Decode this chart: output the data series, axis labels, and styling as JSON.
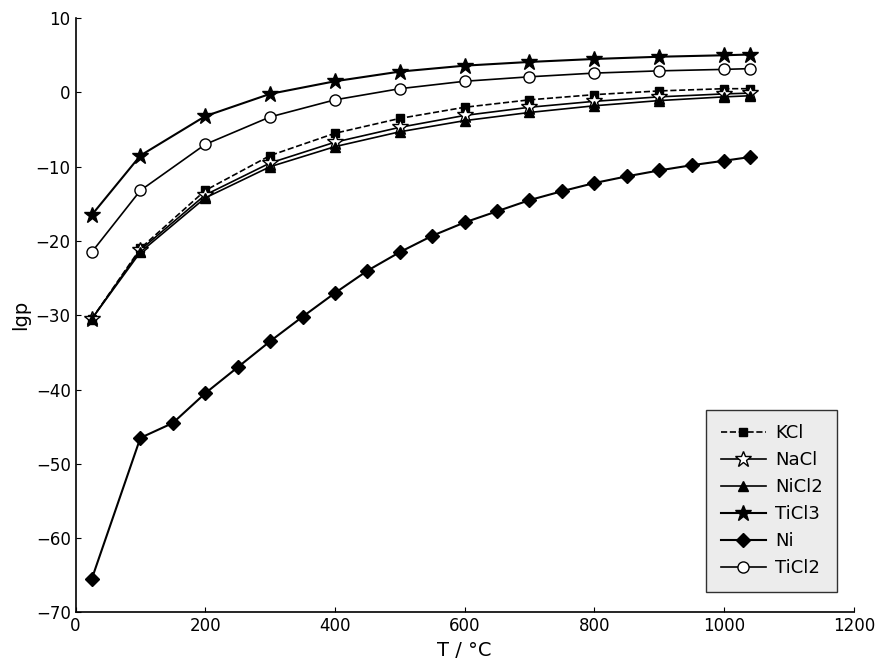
{
  "title": "",
  "xlabel": "T / °C",
  "ylabel": "lgp",
  "xlim": [
    0,
    1200
  ],
  "ylim": [
    -70,
    10
  ],
  "xticks": [
    0,
    200,
    400,
    600,
    800,
    1000,
    1200
  ],
  "yticks": [
    -70,
    -60,
    -50,
    -40,
    -30,
    -20,
    -10,
    0,
    10
  ],
  "KCl_x": [
    25,
    100,
    200,
    300,
    400,
    500,
    600,
    700,
    800,
    900,
    1000,
    1040
  ],
  "KCl_y": [
    -30.5,
    -21.0,
    -13.2,
    -8.5,
    -5.5,
    -3.5,
    -2.0,
    -1.0,
    -0.3,
    0.2,
    0.5,
    0.5
  ],
  "NaCl_x": [
    25,
    100,
    200,
    300,
    400,
    500,
    600,
    700,
    800,
    900,
    1000,
    1040
  ],
  "NaCl_y": [
    -30.5,
    -21.2,
    -13.8,
    -9.5,
    -6.7,
    -4.7,
    -3.1,
    -2.0,
    -1.2,
    -0.6,
    -0.2,
    -0.1
  ],
  "NiCl2_x": [
    25,
    100,
    200,
    300,
    400,
    500,
    600,
    700,
    800,
    900,
    1000,
    1040
  ],
  "NiCl2_y": [
    -30.5,
    -21.5,
    -14.2,
    -10.0,
    -7.3,
    -5.3,
    -3.8,
    -2.7,
    -1.8,
    -1.1,
    -0.6,
    -0.45
  ],
  "TiCl3_x": [
    25,
    100,
    200,
    300,
    400,
    500,
    600,
    700,
    800,
    900,
    1000,
    1040
  ],
  "TiCl3_y": [
    -16.5,
    -8.5,
    -3.2,
    -0.2,
    1.5,
    2.8,
    3.6,
    4.1,
    4.5,
    4.8,
    5.0,
    5.1
  ],
  "Ni_x": [
    25,
    100,
    150,
    200,
    250,
    300,
    350,
    400,
    450,
    500,
    550,
    600,
    650,
    700,
    750,
    800,
    850,
    900,
    950,
    1000,
    1040
  ],
  "Ni_y": [
    -65.5,
    -46.5,
    -44.5,
    -40.5,
    -37.0,
    -33.5,
    -30.2,
    -27.0,
    -24.0,
    -21.5,
    -19.3,
    -17.5,
    -16.0,
    -14.5,
    -13.3,
    -12.2,
    -11.3,
    -10.5,
    -9.8,
    -9.2,
    -8.7
  ],
  "TiCl2_x": [
    25,
    100,
    200,
    300,
    400,
    500,
    600,
    700,
    800,
    900,
    1000,
    1040
  ],
  "TiCl2_y": [
    -21.5,
    -13.2,
    -7.0,
    -3.3,
    -1.0,
    0.5,
    1.5,
    2.1,
    2.6,
    2.9,
    3.1,
    3.2
  ],
  "background_color": "#ffffff",
  "legend_bg_color": "#e8e8e8",
  "legend_fontsize": 13,
  "axis_fontsize": 14,
  "tick_fontsize": 12
}
